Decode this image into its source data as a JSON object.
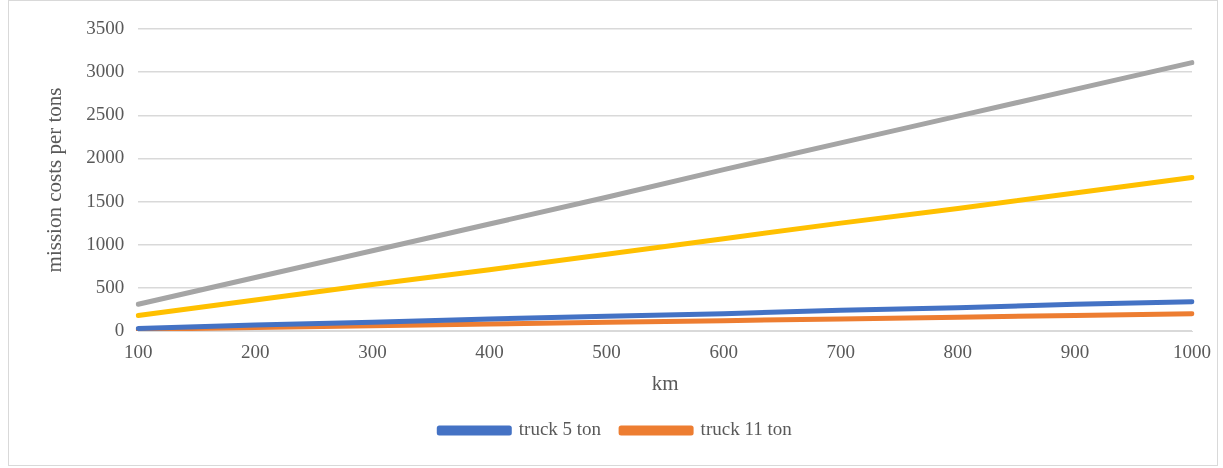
{
  "chart_data": {
    "type": "line",
    "xlabel": "km",
    "ylabel": "mission costs per tons",
    "categories": [
      "100",
      "200",
      "300",
      "400",
      "500",
      "600",
      "700",
      "800",
      "900",
      "1000"
    ],
    "series": [
      {
        "name": "truck 5 ton",
        "color": "#4472c4",
        "values": [
          30,
          70,
          100,
          140,
          170,
          200,
          240,
          270,
          310,
          340
        ]
      },
      {
        "name": "truck 11 ton",
        "color": "#ed7d31",
        "values": [
          20,
          40,
          60,
          80,
          100,
          120,
          140,
          160,
          180,
          200
        ]
      },
      {
        "color": "#a5a5a5",
        "values": [
          310,
          620,
          930,
          1240,
          1550,
          1870,
          2180,
          2490,
          2800,
          3110
        ]
      },
      {
        "color": "#ffc000",
        "values": [
          180,
          360,
          540,
          710,
          890,
          1070,
          1250,
          1420,
          1600,
          1780
        ]
      }
    ],
    "ylim": [
      0,
      3500
    ],
    "yticks": [
      0,
      500,
      1000,
      1500,
      2000,
      2500,
      3000,
      3500
    ],
    "grid": "y",
    "legend": "bottom",
    "marker": "none",
    "line_style": "solid"
  }
}
